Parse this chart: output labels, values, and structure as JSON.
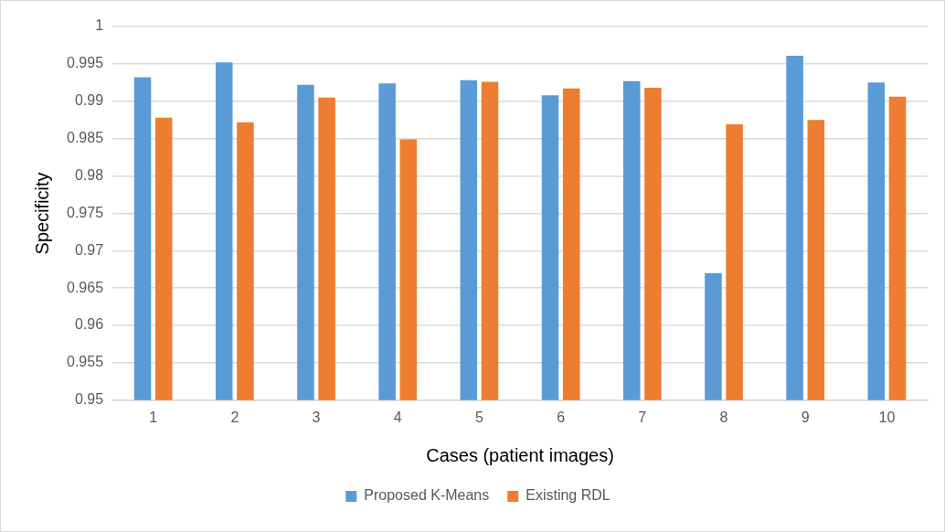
{
  "chart_data": {
    "type": "bar",
    "xlabel": "Cases (patient images)",
    "ylabel": "Specificity",
    "categories": [
      "1",
      "2",
      "3",
      "4",
      "5",
      "6",
      "7",
      "8",
      "9",
      "10"
    ],
    "series": [
      {
        "name": "Proposed K-Means",
        "color": "#5b9bd5",
        "values": [
          0.9932,
          0.9952,
          0.9922,
          0.9924,
          0.9928,
          0.9908,
          0.9927,
          0.967,
          0.9961,
          0.9925
        ]
      },
      {
        "name": "Existing RDL",
        "color": "#ed7d31",
        "values": [
          0.9878,
          0.9872,
          0.9905,
          0.9849,
          0.9926,
          0.9917,
          0.9918,
          0.9869,
          0.9875,
          0.9906
        ]
      }
    ],
    "ylim": [
      0.95,
      1
    ],
    "yticks": [
      0.95,
      0.955,
      0.96,
      0.965,
      0.97,
      0.975,
      0.98,
      0.985,
      0.99,
      0.995,
      1
    ],
    "grid": "y",
    "legend": "bottom"
  }
}
